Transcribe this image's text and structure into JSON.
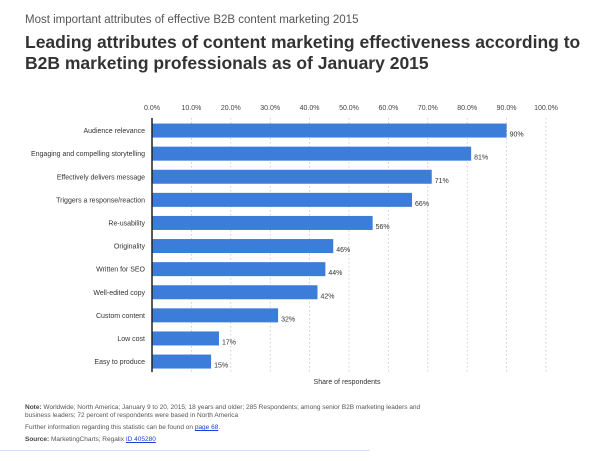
{
  "header": {
    "subtitle": "Most important attributes of effective B2B content marketing 2015",
    "title": "Leading attributes of content marketing effectiveness according to B2B marketing professionals as of January 2015"
  },
  "chart_data": {
    "type": "bar",
    "orientation": "horizontal",
    "categories": [
      "Audience relevance",
      "Engaging and compelling storytelling",
      "Effectively delivers message",
      "Triggers a response/reaction",
      "Re-usability",
      "Originality",
      "Written for SEO",
      "Well-edited copy",
      "Custom content",
      "Low cost",
      "Easy to produce"
    ],
    "values": [
      90,
      81,
      71,
      66,
      56,
      46,
      44,
      42,
      32,
      17,
      15
    ],
    "data_labels": [
      "90%",
      "81%",
      "71%",
      "66%",
      "56%",
      "46%",
      "44%",
      "42%",
      "32%",
      "17%",
      "15%"
    ],
    "xlabel": "Share of respondents",
    "xlim": [
      0,
      100
    ],
    "x_ticks": [
      "0.0%",
      "10.0%",
      "20.0%",
      "30.0%",
      "40.0%",
      "50.0%",
      "60.0%",
      "70.0%",
      "80.0%",
      "90.0%",
      "100.0%"
    ],
    "tick_position": "top",
    "grid": "dotted vertical",
    "bar_color": "#3b7dd8"
  },
  "footer": {
    "note_label": "Note:",
    "note_text": "Worldwide; North America; January 9 to 20, 2015; 18 years and older; 285 Respondents; among senior B2B marketing leaders and business leaders; 72 percent of respondents were based in North America",
    "further_text": "Further information regarding this statistic can be found on",
    "further_link": "page 68",
    "source_label": "Source:",
    "source_text": "MarketingCharts; Regalix",
    "source_link": "ID 405280"
  }
}
